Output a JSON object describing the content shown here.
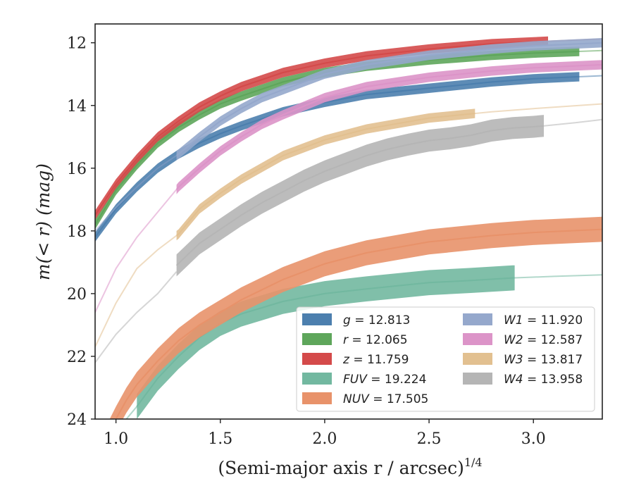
{
  "chart_data": {
    "type": "line",
    "xlabel": "(Semi-major axis r / arcsec)",
    "xlabel_sup": "1/4",
    "ylabel": "m(< r) (mag)",
    "xlim": [
      0.9,
      3.33
    ],
    "ylim": [
      24,
      11.4
    ],
    "y_inverted": true,
    "grid": false,
    "legend_position": "lower-right",
    "xticks": [
      1.0,
      1.5,
      2.0,
      2.5,
      3.0
    ],
    "xtick_labels": [
      "1.0",
      "1.5",
      "2.0",
      "2.5",
      "3.0"
    ],
    "yticks": [
      12,
      14,
      16,
      18,
      20,
      22,
      24
    ],
    "ytick_labels": [
      "12",
      "14",
      "16",
      "18",
      "20",
      "22",
      "24"
    ],
    "series": [
      {
        "name": "g = 12.813",
        "var": "g",
        "value": "12.813",
        "color": "#4c7fae",
        "x": [
          0.9,
          1.0,
          1.1,
          1.2,
          1.3,
          1.4,
          1.5,
          1.6,
          1.8,
          2.0,
          2.2,
          2.5,
          2.8,
          3.0,
          3.33
        ],
        "y": [
          18.2,
          17.3,
          16.6,
          16.0,
          15.55,
          15.2,
          14.9,
          14.65,
          14.2,
          13.9,
          13.65,
          13.45,
          13.25,
          13.15,
          13.05
        ],
        "band": 0.15,
        "bright_x": [
          0.9,
          3.22
        ]
      },
      {
        "name": "r = 12.065",
        "var": "r",
        "value": "12.065",
        "color": "#5ea65b",
        "x": [
          0.9,
          1.0,
          1.1,
          1.2,
          1.3,
          1.4,
          1.5,
          1.6,
          1.8,
          2.0,
          2.2,
          2.5,
          2.8,
          3.0,
          3.33
        ],
        "y": [
          17.8,
          16.7,
          15.9,
          15.2,
          14.7,
          14.3,
          13.95,
          13.7,
          13.25,
          12.95,
          12.75,
          12.55,
          12.4,
          12.33,
          12.25
        ],
        "band": 0.15,
        "bright_x": [
          0.9,
          3.22
        ]
      },
      {
        "name": "z = 11.759",
        "var": "z",
        "value": "11.759",
        "color": "#d44a4a",
        "x": [
          0.9,
          1.0,
          1.1,
          1.2,
          1.3,
          1.4,
          1.5,
          1.6,
          1.8,
          2.0,
          2.2,
          2.5,
          2.8,
          3.0,
          3.33
        ],
        "y": [
          17.5,
          16.5,
          15.7,
          15.0,
          14.5,
          14.05,
          13.7,
          13.4,
          12.95,
          12.65,
          12.42,
          12.2,
          12.03,
          11.97,
          11.88
        ],
        "band": 0.15,
        "bright_x": [
          0.9,
          3.07
        ]
      },
      {
        "name": "FUV = 19.224",
        "var": "FUV",
        "value": "19.224",
        "color": "#72b8a0",
        "x": [
          0.97,
          1.0,
          1.05,
          1.1,
          1.2,
          1.3,
          1.4,
          1.5,
          1.6,
          1.8,
          2.0,
          2.2,
          2.5,
          2.7,
          2.9,
          3.1,
          3.33
        ],
        "y": [
          24.6,
          24.4,
          24.0,
          23.6,
          22.7,
          22.0,
          21.4,
          20.95,
          20.65,
          20.25,
          20.0,
          19.85,
          19.65,
          19.58,
          19.5,
          19.45,
          19.4
        ],
        "band": 0.4,
        "bright_x": [
          1.1,
          2.91
        ]
      },
      {
        "name": "NUV = 17.505",
        "var": "NUV",
        "value": "17.505",
        "color": "#e8926a",
        "x": [
          0.97,
          1.0,
          1.05,
          1.1,
          1.2,
          1.3,
          1.4,
          1.5,
          1.6,
          1.8,
          2.0,
          2.2,
          2.5,
          2.8,
          3.0,
          3.33
        ],
        "y": [
          24.4,
          24.0,
          23.4,
          22.9,
          22.15,
          21.5,
          21.0,
          20.6,
          20.2,
          19.55,
          19.05,
          18.7,
          18.35,
          18.15,
          18.05,
          17.95
        ],
        "band": 0.4,
        "bright_x": [
          0.97,
          3.33
        ]
      },
      {
        "name": "W1 = 11.920",
        "var": "W1",
        "value": "11.920",
        "color": "#95a8cc",
        "x": [
          0.9,
          1.0,
          1.1,
          1.2,
          1.3,
          1.4,
          1.5,
          1.6,
          1.7,
          1.8,
          2.0,
          2.2,
          2.5,
          2.8,
          3.0,
          3.33
        ],
        "y": [
          18.0,
          17.25,
          16.6,
          16.0,
          15.55,
          15.0,
          14.5,
          14.1,
          13.75,
          13.5,
          13.0,
          12.7,
          12.4,
          12.2,
          12.1,
          12.0
        ],
        "band": 0.15,
        "bright_x": [
          1.29,
          3.33
        ]
      },
      {
        "name": "W2 = 12.587",
        "var": "W2",
        "value": "12.587",
        "color": "#dc94c8",
        "x": [
          0.9,
          1.0,
          1.1,
          1.2,
          1.3,
          1.4,
          1.5,
          1.6,
          1.7,
          1.8,
          2.0,
          2.2,
          2.5,
          2.8,
          3.0,
          3.33
        ],
        "y": [
          20.6,
          19.2,
          18.2,
          17.4,
          16.6,
          16.0,
          15.45,
          15.0,
          14.6,
          14.3,
          13.75,
          13.4,
          13.1,
          12.9,
          12.8,
          12.7
        ],
        "band": 0.15,
        "bright_x": [
          1.29,
          3.33
        ]
      },
      {
        "name": "W3 = 13.817",
        "var": "W3",
        "value": "13.817",
        "color": "#e2c090",
        "x": [
          0.9,
          1.0,
          1.1,
          1.2,
          1.3,
          1.4,
          1.5,
          1.6,
          1.8,
          2.0,
          2.2,
          2.5,
          2.8,
          3.0,
          3.33
        ],
        "y": [
          21.7,
          20.3,
          19.2,
          18.6,
          18.1,
          17.3,
          16.8,
          16.35,
          15.6,
          15.1,
          14.75,
          14.4,
          14.2,
          14.1,
          13.95
        ],
        "band": 0.15,
        "bright_x": [
          1.29,
          2.72
        ]
      },
      {
        "name": "W4 = 13.958",
        "var": "W4",
        "value": "13.958",
        "color": "#b5b5b5",
        "x": [
          1.29,
          1.4,
          1.5,
          1.6,
          1.7,
          1.8,
          1.9,
          2.0,
          2.1,
          2.2,
          2.3,
          2.4,
          2.5,
          2.6,
          2.7,
          2.8,
          2.9,
          3.0,
          3.05
        ],
        "y": [
          19.1,
          18.4,
          17.95,
          17.5,
          17.1,
          16.75,
          16.4,
          16.1,
          15.85,
          15.6,
          15.4,
          15.25,
          15.12,
          15.05,
          14.95,
          14.8,
          14.72,
          14.68,
          14.65
        ],
        "band": 0.35,
        "bright_x": [
          1.29,
          3.05
        ],
        "faint_before": {
          "x": [
            0.9,
            1.0,
            1.1,
            1.2,
            1.29
          ],
          "y": [
            22.2,
            21.3,
            20.6,
            20.0,
            19.3
          ]
        },
        "faint_after": {
          "x": [
            3.05,
            3.2,
            3.33
          ],
          "y": [
            14.65,
            14.55,
            14.45
          ]
        }
      }
    ]
  }
}
